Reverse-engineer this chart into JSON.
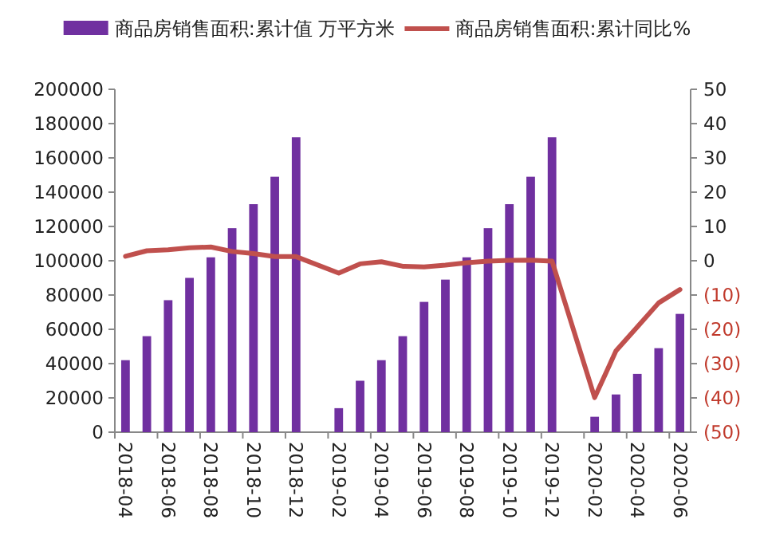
{
  "chart_data": {
    "type": "bar",
    "categories": [
      "2018-04",
      null,
      "2018-06",
      null,
      "2018-08",
      null,
      "2018-10",
      null,
      "2018-12",
      null,
      "2019-02",
      null,
      "2019-04",
      null,
      "2019-06",
      null,
      "2019-08",
      null,
      "2019-10",
      null,
      "2019-12",
      null,
      "2020-02",
      null,
      "2020-04",
      null,
      "2020-06"
    ],
    "series": [
      {
        "name": "商品房销售面积:累计值 万平方米",
        "color": "#7030a0",
        "values": [
          42000,
          56000,
          77000,
          90000,
          102000,
          119000,
          133000,
          149000,
          172000,
          null,
          14000,
          30000,
          42000,
          56000,
          76000,
          89000,
          102000,
          119000,
          133000,
          149000,
          172000,
          null,
          9000,
          22000,
          34000,
          49000,
          69000
        ]
      },
      {
        "name": "商品房销售面积:累计同比%",
        "type": "line",
        "axis": "y2",
        "color": "#c0504d",
        "values": [
          1.3,
          2.9,
          3.2,
          3.8,
          4.0,
          2.7,
          2.1,
          1.2,
          1.2,
          null,
          -3.6,
          -0.9,
          -0.3,
          -1.6,
          -1.8,
          -1.3,
          -0.6,
          -0.1,
          0.1,
          0.2,
          -0.1,
          null,
          -39.9,
          -26.3,
          -19.3,
          -12.3,
          -8.4
        ]
      }
    ],
    "ylim": [
      0,
      200000
    ],
    "yticks": [
      0,
      20000,
      40000,
      60000,
      80000,
      100000,
      120000,
      140000,
      160000,
      180000,
      200000
    ],
    "y2lim": [
      -50,
      50
    ],
    "y2ticks": [
      {
        "value": -50,
        "label": "(50)"
      },
      {
        "value": -40,
        "label": "(40)"
      },
      {
        "value": -30,
        "label": "(30)"
      },
      {
        "value": -20,
        "label": "(20)"
      },
      {
        "value": -10,
        "label": "(10)"
      },
      0,
      10,
      20,
      30,
      40,
      50
    ],
    "legend": "top",
    "grid": false
  }
}
